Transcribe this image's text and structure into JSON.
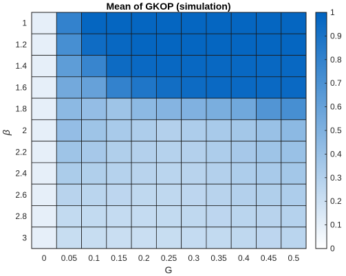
{
  "chart_data": {
    "type": "heatmap",
    "title": "Mean of GKOP (simulation)",
    "xlabel": "G",
    "ylabel": "β",
    "x": [
      "0",
      "0.05",
      "0.1",
      "0.15",
      "0.2",
      "0.25",
      "0.3",
      "0.35",
      "0.4",
      "0.45",
      "0.5"
    ],
    "y": [
      "1",
      "1.2",
      "1.4",
      "1.6",
      "1.8",
      "2",
      "2.2",
      "2.4",
      "2.6",
      "2.8",
      "3"
    ],
    "values": [
      [
        0.1,
        0.8,
        0.98,
        0.98,
        0.98,
        0.98,
        0.98,
        0.98,
        0.98,
        0.98,
        0.98
      ],
      [
        0.1,
        0.72,
        0.94,
        0.97,
        0.98,
        0.98,
        0.98,
        0.98,
        0.98,
        0.98,
        0.98
      ],
      [
        0.1,
        0.63,
        0.78,
        0.95,
        0.96,
        0.97,
        0.97,
        0.97,
        0.97,
        0.97,
        0.97
      ],
      [
        0.1,
        0.55,
        0.6,
        0.8,
        0.88,
        0.93,
        0.95,
        0.96,
        0.96,
        0.96,
        0.96
      ],
      [
        0.1,
        0.45,
        0.42,
        0.38,
        0.45,
        0.48,
        0.5,
        0.52,
        0.56,
        0.68,
        0.72
      ],
      [
        0.1,
        0.42,
        0.38,
        0.34,
        0.32,
        0.3,
        0.32,
        0.34,
        0.36,
        0.4,
        0.45
      ],
      [
        0.1,
        0.38,
        0.35,
        0.31,
        0.3,
        0.29,
        0.3,
        0.32,
        0.35,
        0.38,
        0.4
      ],
      [
        0.1,
        0.33,
        0.31,
        0.29,
        0.28,
        0.27,
        0.28,
        0.3,
        0.32,
        0.34,
        0.36
      ],
      [
        0.1,
        0.28,
        0.27,
        0.26,
        0.25,
        0.25,
        0.26,
        0.28,
        0.3,
        0.31,
        0.32
      ],
      [
        0.1,
        0.24,
        0.24,
        0.23,
        0.23,
        0.24,
        0.25,
        0.26,
        0.27,
        0.28,
        0.29
      ],
      [
        0.1,
        0.22,
        0.22,
        0.21,
        0.21,
        0.22,
        0.23,
        0.24,
        0.25,
        0.26,
        0.27
      ]
    ],
    "colorbar": {
      "range": [
        0,
        1
      ],
      "ticks": [
        "0",
        "0.1",
        "0.2",
        "0.3",
        "0.4",
        "0.5",
        "0.6",
        "0.7",
        "0.8",
        "0.9",
        "1"
      ],
      "color_low": "#ffffff",
      "color_high": "#0063c0"
    },
    "colors": {
      "grid": "#1a1a1a",
      "text": "#262626"
    }
  }
}
